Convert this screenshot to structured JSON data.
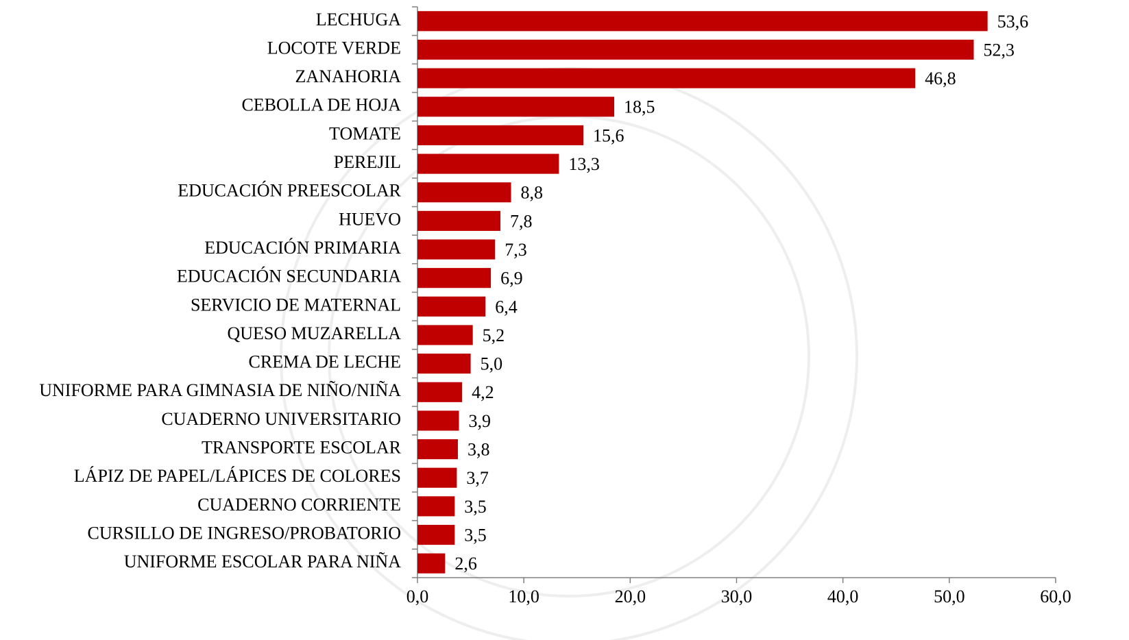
{
  "chart_data": {
    "type": "barh",
    "categories": [
      "LECHUGA",
      "LOCOTE VERDE",
      "ZANAHORIA",
      "CEBOLLA DE HOJA",
      "TOMATE",
      "PEREJIL",
      "EDUCACIÓN PREESCOLAR",
      "HUEVO",
      "EDUCACIÓN PRIMARIA",
      "EDUCACIÓN SECUNDARIA",
      "SERVICIO DE MATERNAL",
      "QUESO MUZARELLA",
      "CREMA DE LECHE",
      "UNIFORME PARA GIMNASIA DE NIÑO/NIÑA",
      "CUADERNO UNIVERSITARIO",
      "TRANSPORTE ESCOLAR",
      "LÁPIZ DE PAPEL/LÁPICES DE COLORES",
      "CUADERNO CORRIENTE",
      "CURSILLO DE INGRESO/PROBATORIO",
      "UNIFORME ESCOLAR PARA NIÑA"
    ],
    "values": [
      53.6,
      52.3,
      46.8,
      18.5,
      15.6,
      13.3,
      8.8,
      7.8,
      7.3,
      6.9,
      6.4,
      5.2,
      5.0,
      4.2,
      3.9,
      3.8,
      3.7,
      3.5,
      3.5,
      2.6
    ],
    "value_labels": [
      "53,6",
      "52,3",
      "46,8",
      "18,5",
      "15,6",
      "13,3",
      "8,8",
      "7,8",
      "7,3",
      "6,9",
      "6,4",
      "5,2",
      "5,0",
      "4,2",
      "3,9",
      "3,8",
      "3,7",
      "3,5",
      "3,5",
      "2,6"
    ],
    "color": "#c00000",
    "xlim": [
      0,
      60
    ],
    "xticks": [
      {
        "value": 0,
        "label": "0,0"
      },
      {
        "value": 10,
        "label": "10,0"
      },
      {
        "value": 20,
        "label": "20,0"
      },
      {
        "value": 30,
        "label": "30,0"
      },
      {
        "value": 40,
        "label": "40,0"
      },
      {
        "value": 50,
        "label": "50,0"
      },
      {
        "value": 60,
        "label": "60,0"
      }
    ],
    "grid": false
  }
}
